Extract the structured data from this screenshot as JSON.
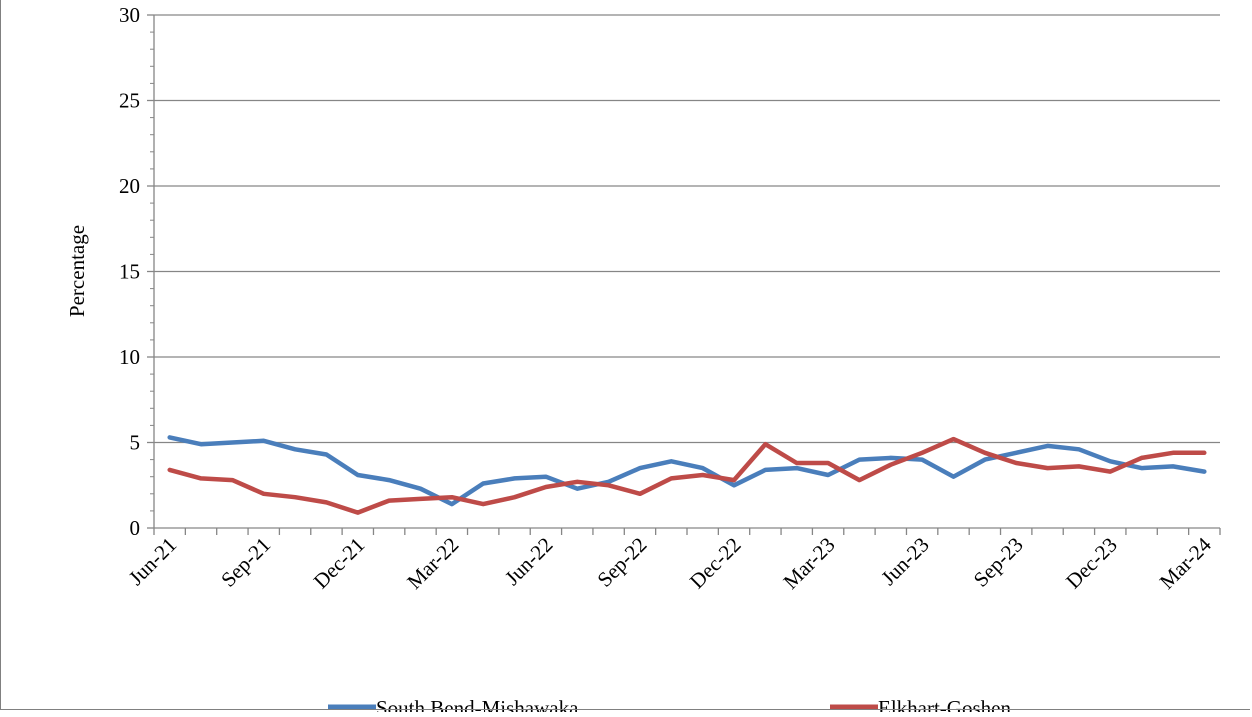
{
  "chart_data": {
    "type": "line",
    "title": "",
    "xlabel": "",
    "ylabel": "Percentage",
    "ylim": [
      0,
      30
    ],
    "yticks": [
      0,
      5,
      10,
      15,
      20,
      25,
      30
    ],
    "grid": "horizontal major gridlines",
    "legend_position": "bottom",
    "x": [
      "Jun-21",
      "Jul-21",
      "Aug-21",
      "Sep-21",
      "Oct-21",
      "Nov-21",
      "Dec-21",
      "Jan-22",
      "Feb-22",
      "Mar-22",
      "Apr-22",
      "May-22",
      "Jun-22",
      "Jul-22",
      "Aug-22",
      "Sep-22",
      "Oct-22",
      "Nov-22",
      "Dec-22",
      "Jan-23",
      "Feb-23",
      "Mar-23",
      "Apr-23",
      "May-23",
      "Jun-23",
      "Jul-23",
      "Aug-23",
      "Sep-23",
      "Oct-23",
      "Nov-23",
      "Dec-23",
      "Jan-24",
      "Feb-24",
      "Mar-24"
    ],
    "xtick_labels": [
      "Jun-21",
      "Sep-21",
      "Dec-21",
      "Mar-22",
      "Jun-22",
      "Sep-22",
      "Dec-22",
      "Mar-23",
      "Jun-23",
      "Sep-23",
      "Dec-23",
      "Mar-24"
    ],
    "series": [
      {
        "name": "South Bend-Mishawaka",
        "color": "#4a7ebb",
        "values": [
          5.3,
          4.9,
          5.0,
          5.1,
          4.6,
          4.3,
          3.1,
          2.8,
          2.3,
          1.4,
          2.6,
          2.9,
          3.0,
          2.3,
          2.7,
          3.5,
          3.9,
          3.5,
          2.5,
          3.4,
          3.5,
          3.1,
          4.0,
          4.1,
          4.0,
          3.0,
          4.0,
          4.4,
          4.8,
          4.6,
          3.9,
          3.5,
          3.6,
          3.3
        ]
      },
      {
        "name": "Elkhart-Goshen",
        "color": "#be4b48",
        "values": [
          3.4,
          2.9,
          2.8,
          2.0,
          1.8,
          1.5,
          0.9,
          1.6,
          1.7,
          1.8,
          1.4,
          1.8,
          2.4,
          2.7,
          2.5,
          2.0,
          2.9,
          3.1,
          2.8,
          4.9,
          3.8,
          3.8,
          2.8,
          3.7,
          4.4,
          5.2,
          4.4,
          3.8,
          3.5,
          3.6,
          3.3,
          4.1,
          4.4,
          4.4
        ]
      }
    ]
  }
}
